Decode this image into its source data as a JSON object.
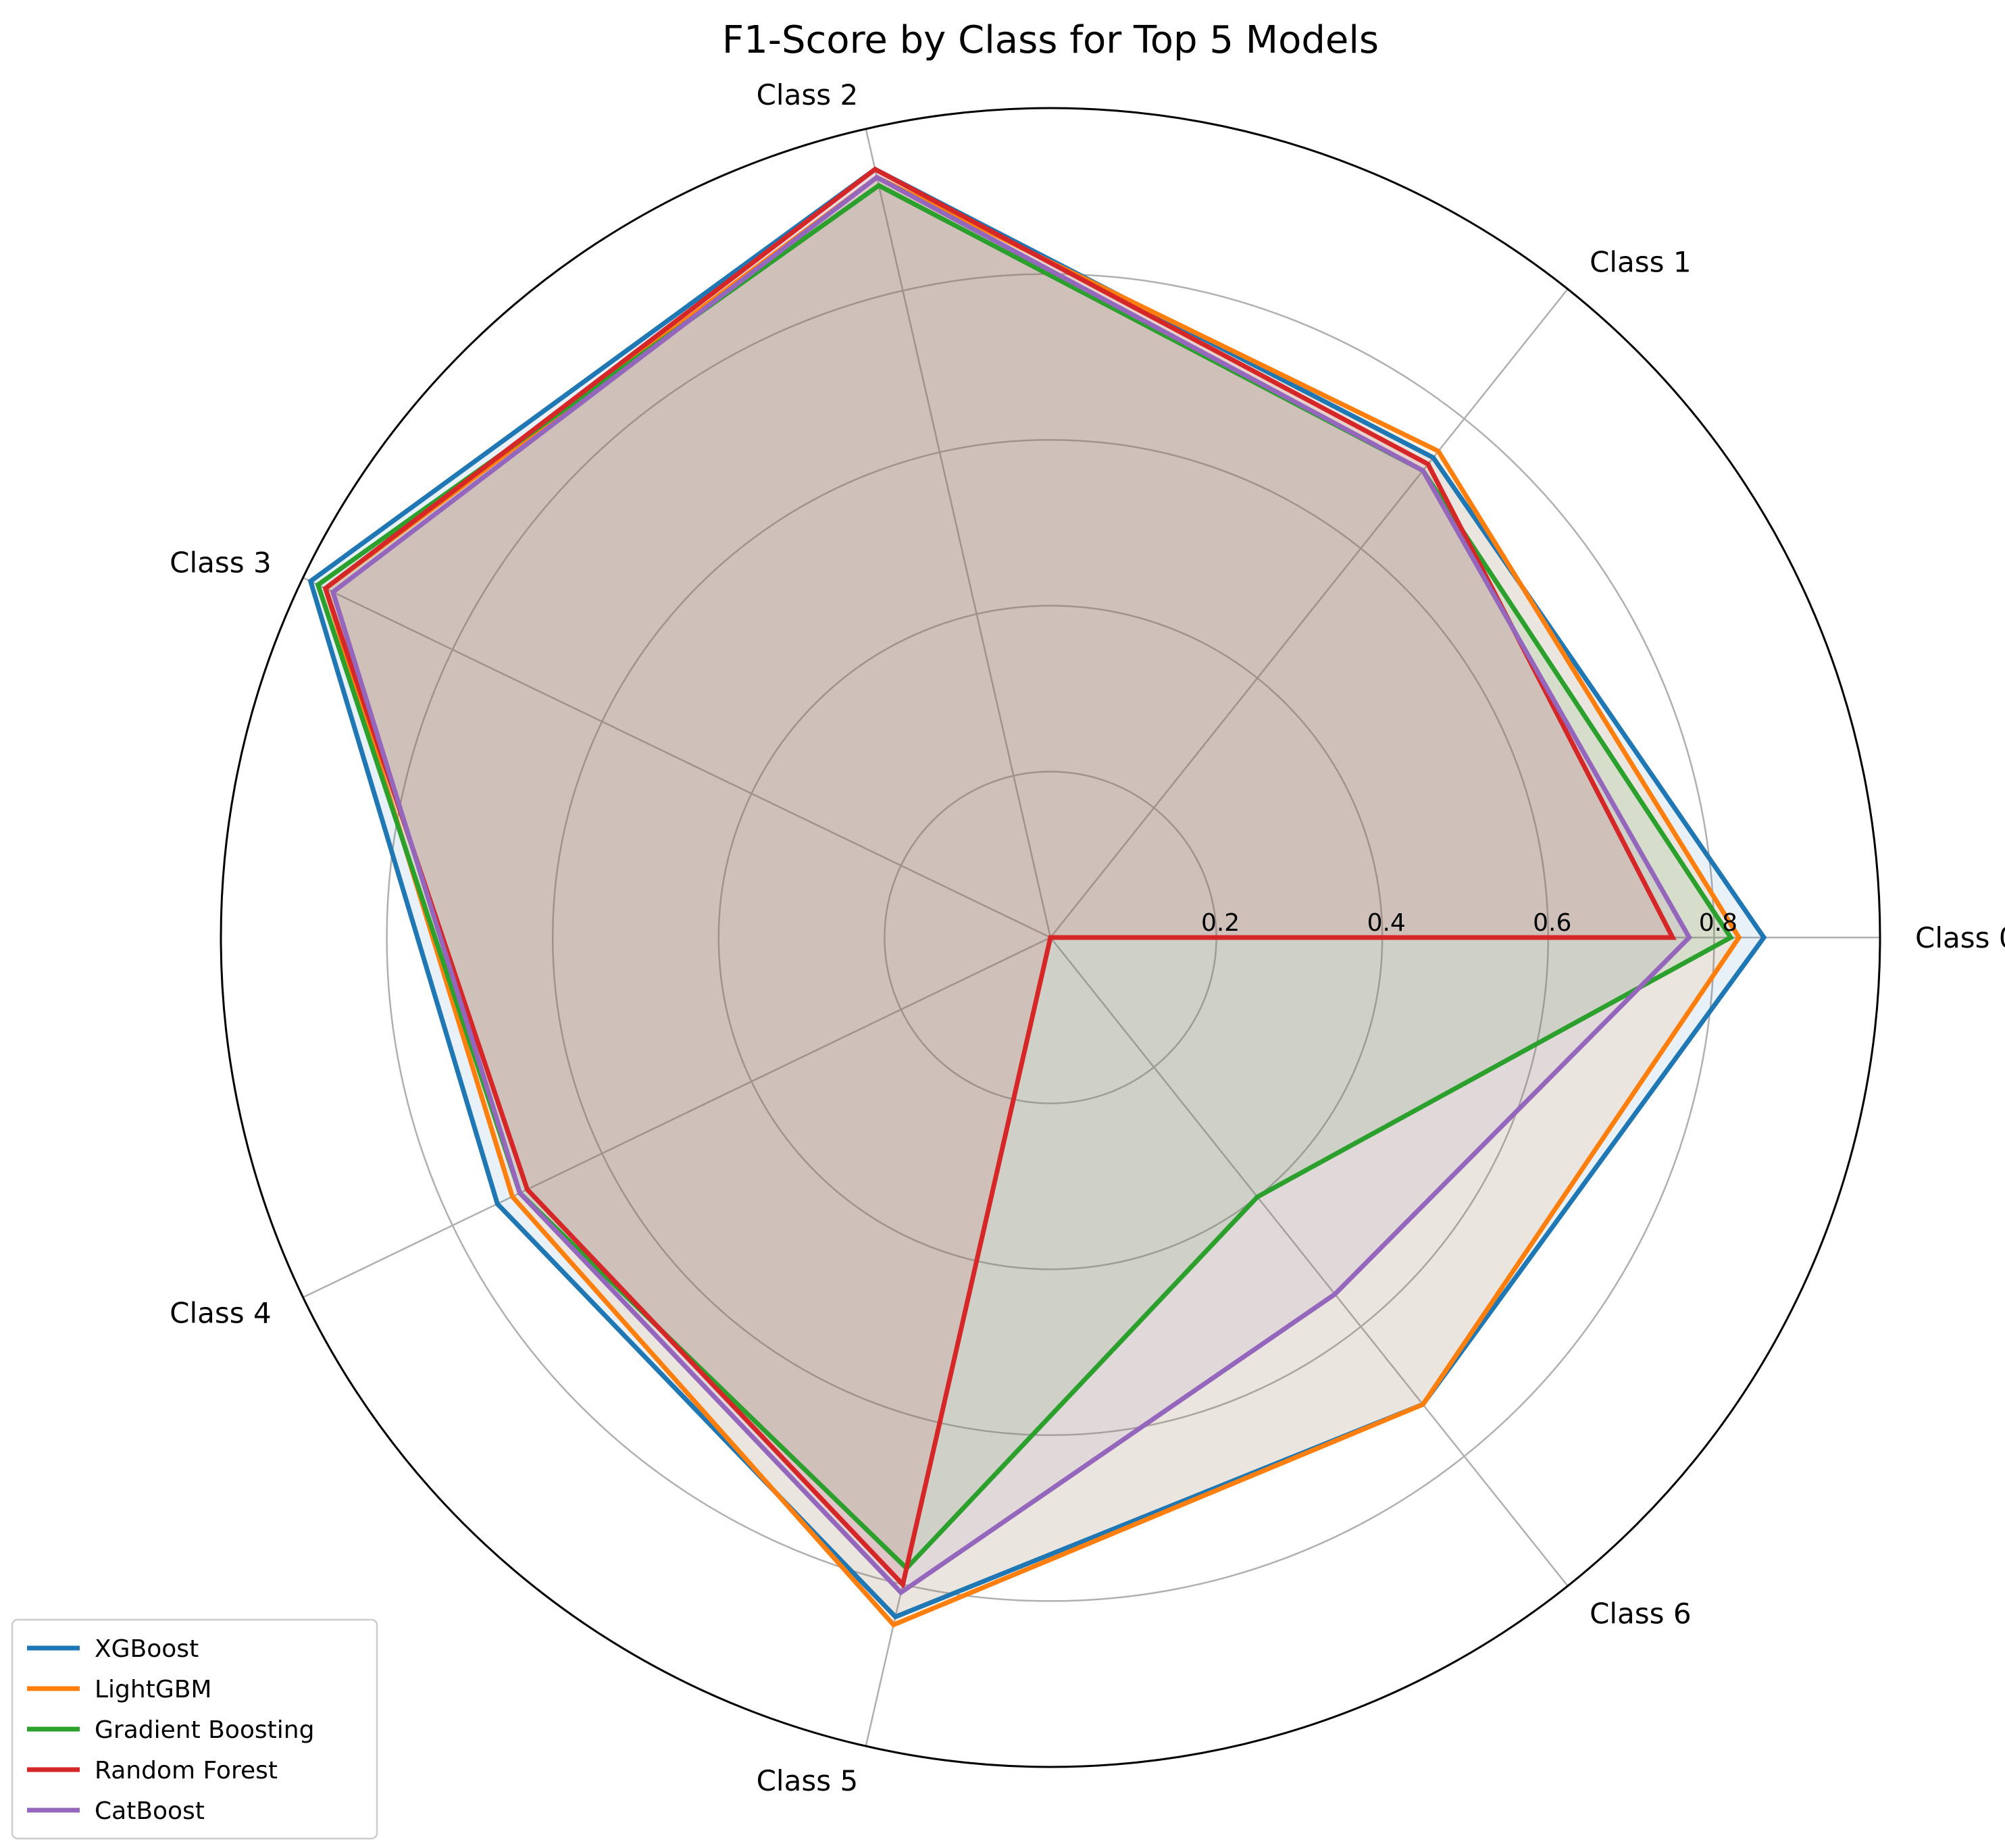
{
  "chart_data": {
    "type": "radar",
    "title": "F1-Score by Class for Top 5 Models",
    "categories": [
      "Class 0",
      "Class 1",
      "Class 2",
      "Class 3",
      "Class 4",
      "Class 5",
      "Class 6"
    ],
    "radial_ticks": [
      "0.2",
      "0.4",
      "0.6",
      "0.8"
    ],
    "rlim": [
      0,
      1.0
    ],
    "grid": true,
    "legend_position": "lower-left",
    "series": [
      {
        "name": "XGBoost",
        "color": "#1f77b4",
        "values": [
          0.86,
          0.74,
          0.95,
          0.99,
          0.74,
          0.84,
          0.72
        ]
      },
      {
        "name": "LightGBM",
        "color": "#ff7f0e",
        "values": [
          0.83,
          0.75,
          0.94,
          0.97,
          0.72,
          0.85,
          0.72
        ]
      },
      {
        "name": "Gradient Boosting",
        "color": "#2ca02c",
        "values": [
          0.82,
          0.72,
          0.93,
          0.98,
          0.71,
          0.78,
          0.4
        ]
      },
      {
        "name": "Random Forest",
        "color": "#d62728",
        "values": [
          0.75,
          0.73,
          0.95,
          0.97,
          0.7,
          0.8,
          0.0
        ]
      },
      {
        "name": "CatBoost",
        "color": "#9467bd",
        "values": [
          0.77,
          0.72,
          0.94,
          0.96,
          0.71,
          0.81,
          0.55
        ]
      }
    ]
  }
}
